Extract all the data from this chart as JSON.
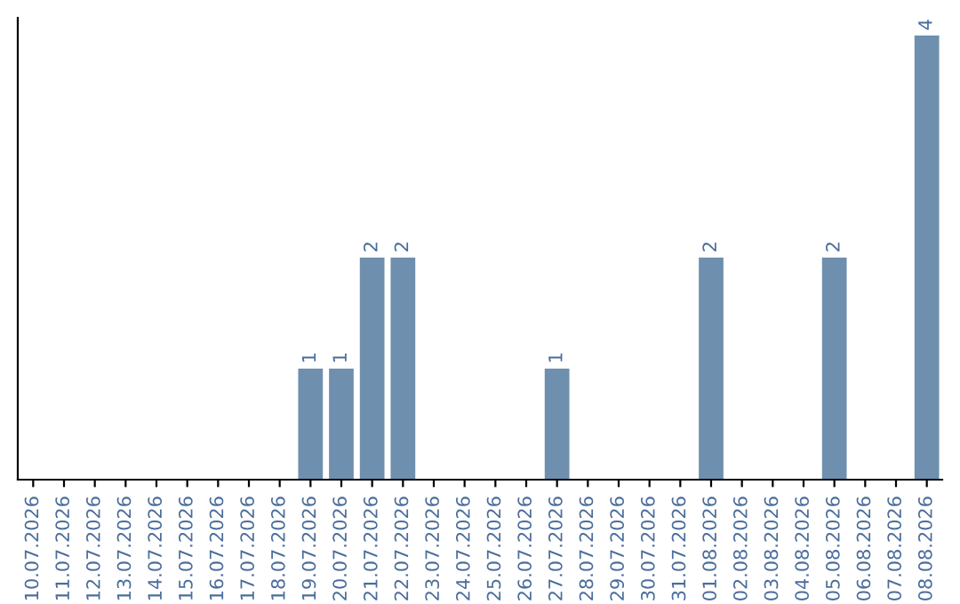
{
  "chart_data": {
    "type": "bar",
    "categories": [
      "10.07.2026",
      "11.07.2026",
      "12.07.2026",
      "13.07.2026",
      "14.07.2026",
      "15.07.2026",
      "16.07.2026",
      "17.07.2026",
      "18.07.2026",
      "19.07.2026",
      "20.07.2026",
      "21.07.2026",
      "22.07.2026",
      "23.07.2026",
      "24.07.2026",
      "25.07.2026",
      "26.07.2026",
      "27.07.2026",
      "28.07.2026",
      "29.07.2026",
      "30.07.2026",
      "31.07.2026",
      "01.08.2026",
      "02.08.2026",
      "03.08.2026",
      "04.08.2026",
      "05.08.2026",
      "06.08.2026",
      "07.08.2026",
      "08.08.2026"
    ],
    "values": [
      0,
      0,
      0,
      0,
      0,
      0,
      0,
      0,
      0,
      1,
      1,
      2,
      2,
      0,
      0,
      0,
      0,
      1,
      0,
      0,
      0,
      0,
      2,
      0,
      0,
      0,
      2,
      0,
      0,
      4
    ],
    "value_labels": [
      null,
      null,
      null,
      null,
      null,
      null,
      null,
      null,
      null,
      "1",
      "1",
      "2",
      "2",
      null,
      null,
      null,
      null,
      "1",
      null,
      null,
      null,
      null,
      "2",
      null,
      null,
      null,
      "2",
      null,
      null,
      "4"
    ],
    "color": "#6f8fae",
    "tick_labels": "x",
    "grid": false
  }
}
